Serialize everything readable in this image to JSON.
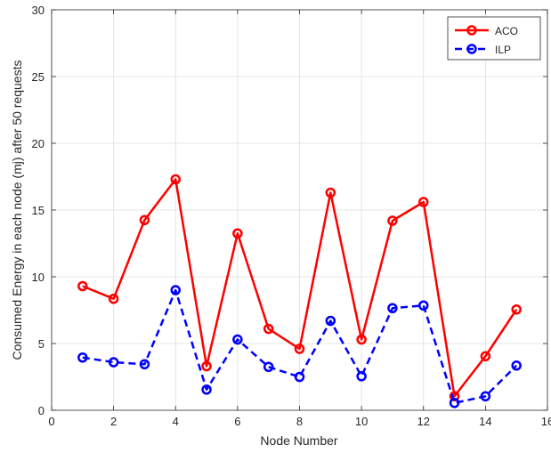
{
  "chart_data": {
    "type": "line",
    "title": "",
    "xlabel": "Node Number",
    "ylabel": "Consumed Energy in each node (mj) after 50 requests",
    "xlim": [
      0,
      16
    ],
    "ylim": [
      0,
      30
    ],
    "xticks": [
      0,
      2,
      4,
      6,
      8,
      10,
      12,
      14,
      16
    ],
    "yticks": [
      0,
      5,
      10,
      15,
      20,
      25,
      30
    ],
    "xtick_labels": [
      "0",
      "2",
      "4",
      "6",
      "8",
      "10",
      "12",
      "14",
      "16"
    ],
    "ytick_labels": [
      "0",
      "5",
      "10",
      "15",
      "20",
      "25",
      "30"
    ],
    "grid": true,
    "legend_position": "top-right",
    "x": [
      1,
      2,
      3,
      4,
      5,
      6,
      7,
      8,
      9,
      10,
      11,
      12,
      13,
      14,
      15
    ],
    "series": [
      {
        "name": "ACO",
        "color": "#ff0000",
        "line_style": "solid",
        "marker": "circle",
        "values": [
          9.3,
          8.35,
          14.25,
          17.3,
          3.3,
          13.25,
          6.1,
          4.6,
          16.3,
          5.3,
          14.2,
          15.6,
          1.05,
          4.05,
          7.55
        ]
      },
      {
        "name": "ILP",
        "color": "#0000ff",
        "line_style": "dashed",
        "marker": "circle",
        "values": [
          3.95,
          3.6,
          3.45,
          9.0,
          1.55,
          5.3,
          3.25,
          2.5,
          6.7,
          2.55,
          7.65,
          7.85,
          0.55,
          1.05,
          3.35
        ]
      }
    ]
  }
}
